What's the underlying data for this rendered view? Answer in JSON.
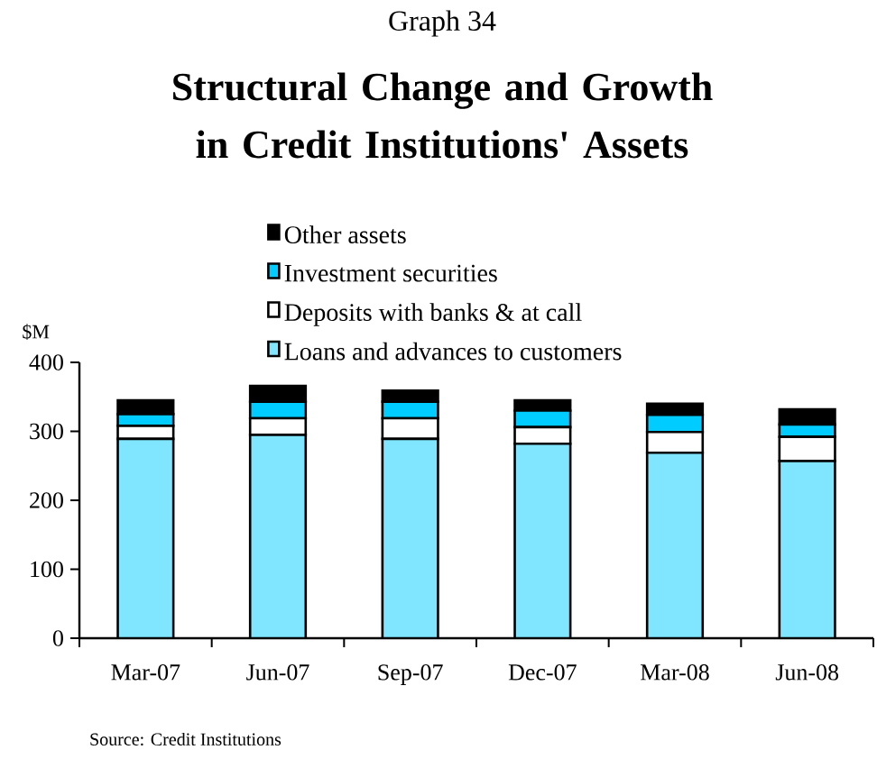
{
  "chart_data": {
    "type": "bar",
    "stacked": true,
    "title": "Structural Change and Growth in Credit Institutions' Assets",
    "ylabel": "$M",
    "annotations": [
      "Graph 34",
      "Source: Credit Institutions"
    ],
    "categories": [
      "Mar-07",
      "Jun-07",
      "Sep-07",
      "Dec-07",
      "Mar-08",
      "Jun-08"
    ],
    "series": [
      {
        "name": "Loans and advances to customers",
        "color": "#80e6ff",
        "values": [
          289,
          295,
          289,
          282,
          269,
          257
        ]
      },
      {
        "name": "Deposits with banks & at call",
        "color": "#ffffff",
        "values": [
          19,
          24,
          30,
          24,
          30,
          35
        ]
      },
      {
        "name": "Investment securities",
        "color": "#00ccff",
        "values": [
          17,
          24,
          24,
          24,
          25,
          18
        ]
      },
      {
        "name": "Other assets",
        "color": "#000000",
        "values": [
          20,
          23,
          16,
          15,
          16,
          22
        ]
      }
    ],
    "ylim": [
      0,
      400
    ],
    "yticks": [
      0,
      100,
      200,
      300,
      400
    ],
    "legend": "top"
  }
}
